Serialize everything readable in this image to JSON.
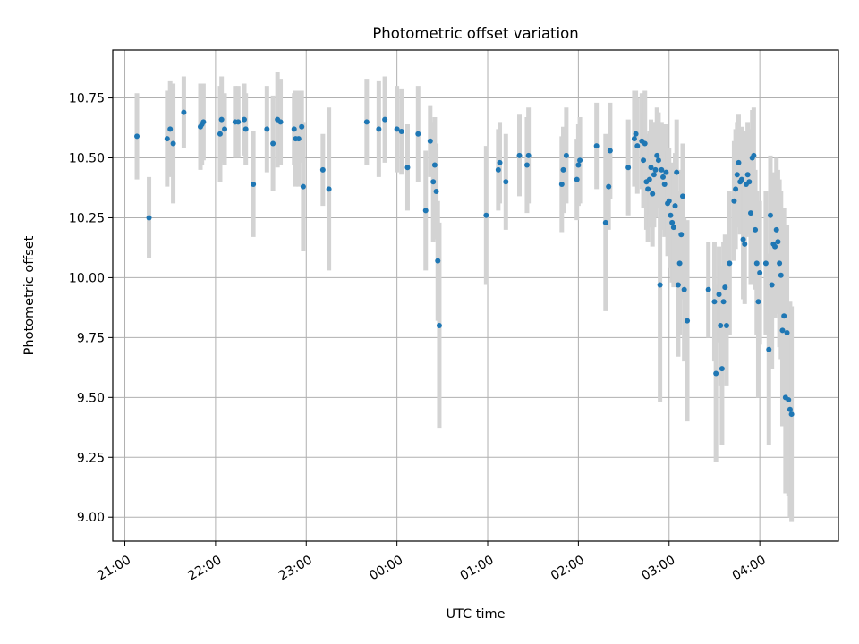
{
  "chart_data": {
    "type": "scatter",
    "title": "Photometric offset variation",
    "xlabel": "UTC time",
    "ylabel": "Photometric offset",
    "x_unit": "UTC time (HH:MM, night spanning 21:00 to ~04:37)",
    "xlim": [
      "20:52",
      "04:52"
    ],
    "ylim": [
      8.9,
      10.95
    ],
    "x_ticks": [
      "21:00",
      "22:00",
      "23:00",
      "00:00",
      "01:00",
      "02:00",
      "03:00",
      "04:00"
    ],
    "y_ticks": [
      "9.00",
      "9.25",
      "9.50",
      "9.75",
      "10.00",
      "10.25",
      "10.50",
      "10.75"
    ],
    "grid": true,
    "colors": {
      "marker": "#1f77b4",
      "errorbar": "#d3d3d3",
      "grid": "#b0b0b0"
    },
    "points": [
      {
        "t": "21:08",
        "y": 10.59,
        "e": 0.18
      },
      {
        "t": "21:16",
        "y": 10.25,
        "e": 0.17
      },
      {
        "t": "21:28",
        "y": 10.58,
        "e": 0.2
      },
      {
        "t": "21:30",
        "y": 10.62,
        "e": 0.2
      },
      {
        "t": "21:32",
        "y": 10.56,
        "e": 0.25
      },
      {
        "t": "21:39",
        "y": 10.69,
        "e": 0.15
      },
      {
        "t": "21:50",
        "y": 10.63,
        "e": 0.18
      },
      {
        "t": "21:51",
        "y": 10.64,
        "e": 0.17
      },
      {
        "t": "21:52",
        "y": 10.65,
        "e": 0.16
      },
      {
        "t": "22:03",
        "y": 10.6,
        "e": 0.2
      },
      {
        "t": "22:04",
        "y": 10.66,
        "e": 0.18
      },
      {
        "t": "22:06",
        "y": 10.62,
        "e": 0.15
      },
      {
        "t": "22:13",
        "y": 10.65,
        "e": 0.15
      },
      {
        "t": "22:15",
        "y": 10.65,
        "e": 0.15
      },
      {
        "t": "22:19",
        "y": 10.66,
        "e": 0.15
      },
      {
        "t": "22:20",
        "y": 10.62,
        "e": 0.15
      },
      {
        "t": "22:25",
        "y": 10.39,
        "e": 0.22
      },
      {
        "t": "22:34",
        "y": 10.62,
        "e": 0.18
      },
      {
        "t": "22:38",
        "y": 10.56,
        "e": 0.2
      },
      {
        "t": "22:41",
        "y": 10.66,
        "e": 0.2
      },
      {
        "t": "22:43",
        "y": 10.65,
        "e": 0.18
      },
      {
        "t": "22:52",
        "y": 10.62,
        "e": 0.15
      },
      {
        "t": "22:53",
        "y": 10.58,
        "e": 0.2
      },
      {
        "t": "22:55",
        "y": 10.58,
        "e": 0.2
      },
      {
        "t": "22:57",
        "y": 10.63,
        "e": 0.15
      },
      {
        "t": "22:58",
        "y": 10.38,
        "e": 0.27
      },
      {
        "t": "23:11",
        "y": 10.45,
        "e": 0.15
      },
      {
        "t": "23:15",
        "y": 10.37,
        "e": 0.34
      },
      {
        "t": "23:40",
        "y": 10.65,
        "e": 0.18
      },
      {
        "t": "23:48",
        "y": 10.62,
        "e": 0.2
      },
      {
        "t": "23:52",
        "y": 10.66,
        "e": 0.18
      },
      {
        "t": "00:00",
        "y": 10.62,
        "e": 0.18
      },
      {
        "t": "00:03",
        "y": 10.61,
        "e": 0.18
      },
      {
        "t": "00:07",
        "y": 10.46,
        "e": 0.18
      },
      {
        "t": "00:14",
        "y": 10.6,
        "e": 0.2
      },
      {
        "t": "00:19",
        "y": 10.28,
        "e": 0.25
      },
      {
        "t": "00:22",
        "y": 10.57,
        "e": 0.15
      },
      {
        "t": "00:24",
        "y": 10.4,
        "e": 0.25
      },
      {
        "t": "00:25",
        "y": 10.47,
        "e": 0.2
      },
      {
        "t": "00:26",
        "y": 10.36,
        "e": 0.2
      },
      {
        "t": "00:27",
        "y": 10.07,
        "e": 0.25
      },
      {
        "t": "00:28",
        "y": 9.8,
        "e": 0.43
      },
      {
        "t": "00:59",
        "y": 10.26,
        "e": 0.29
      },
      {
        "t": "01:07",
        "y": 10.45,
        "e": 0.17
      },
      {
        "t": "01:08",
        "y": 10.48,
        "e": 0.17
      },
      {
        "t": "01:12",
        "y": 10.4,
        "e": 0.2
      },
      {
        "t": "01:21",
        "y": 10.51,
        "e": 0.17
      },
      {
        "t": "01:26",
        "y": 10.47,
        "e": 0.2
      },
      {
        "t": "01:27",
        "y": 10.51,
        "e": 0.2
      },
      {
        "t": "01:49",
        "y": 10.39,
        "e": 0.2
      },
      {
        "t": "01:50",
        "y": 10.45,
        "e": 0.18
      },
      {
        "t": "01:52",
        "y": 10.51,
        "e": 0.2
      },
      {
        "t": "01:59",
        "y": 10.41,
        "e": 0.17
      },
      {
        "t": "02:00",
        "y": 10.47,
        "e": 0.17
      },
      {
        "t": "02:01",
        "y": 10.49,
        "e": 0.18
      },
      {
        "t": "02:12",
        "y": 10.55,
        "e": 0.18
      },
      {
        "t": "02:18",
        "y": 10.23,
        "e": 0.37
      },
      {
        "t": "02:20",
        "y": 10.38,
        "e": 0.18
      },
      {
        "t": "02:21",
        "y": 10.53,
        "e": 0.2
      },
      {
        "t": "02:33",
        "y": 10.46,
        "e": 0.2
      },
      {
        "t": "02:37",
        "y": 10.58,
        "e": 0.2
      },
      {
        "t": "02:38",
        "y": 10.6,
        "e": 0.18
      },
      {
        "t": "02:39",
        "y": 10.55,
        "e": 0.2
      },
      {
        "t": "02:42",
        "y": 10.57,
        "e": 0.2
      },
      {
        "t": "02:43",
        "y": 10.49,
        "e": 0.2
      },
      {
        "t": "02:44",
        "y": 10.56,
        "e": 0.22
      },
      {
        "t": "02:45",
        "y": 10.4,
        "e": 0.2
      },
      {
        "t": "02:46",
        "y": 10.37,
        "e": 0.22
      },
      {
        "t": "02:47",
        "y": 10.41,
        "e": 0.2
      },
      {
        "t": "02:48",
        "y": 10.46,
        "e": 0.2
      },
      {
        "t": "02:49",
        "y": 10.35,
        "e": 0.22
      },
      {
        "t": "02:50",
        "y": 10.43,
        "e": 0.22
      },
      {
        "t": "02:51",
        "y": 10.45,
        "e": 0.2
      },
      {
        "t": "02:52",
        "y": 10.51,
        "e": 0.2
      },
      {
        "t": "02:53",
        "y": 10.49,
        "e": 0.2
      },
      {
        "t": "02:54",
        "y": 9.97,
        "e": 0.49
      },
      {
        "t": "02:55",
        "y": 10.45,
        "e": 0.2
      },
      {
        "t": "02:56",
        "y": 10.42,
        "e": 0.22
      },
      {
        "t": "02:57",
        "y": 10.39,
        "e": 0.22
      },
      {
        "t": "02:58",
        "y": 10.44,
        "e": 0.2
      },
      {
        "t": "02:59",
        "y": 10.31,
        "e": 0.22
      },
      {
        "t": "03:00",
        "y": 10.32,
        "e": 0.22
      },
      {
        "t": "03:01",
        "y": 10.26,
        "e": 0.22
      },
      {
        "t": "03:02",
        "y": 10.23,
        "e": 0.25
      },
      {
        "t": "03:03",
        "y": 10.21,
        "e": 0.25
      },
      {
        "t": "03:04",
        "y": 10.3,
        "e": 0.22
      },
      {
        "t": "03:05",
        "y": 10.44,
        "e": 0.22
      },
      {
        "t": "03:06",
        "y": 9.97,
        "e": 0.3
      },
      {
        "t": "03:07",
        "y": 10.06,
        "e": 0.3
      },
      {
        "t": "03:08",
        "y": 10.18,
        "e": 0.27
      },
      {
        "t": "03:09",
        "y": 10.34,
        "e": 0.22
      },
      {
        "t": "03:10",
        "y": 9.95,
        "e": 0.3
      },
      {
        "t": "03:12",
        "y": 9.82,
        "e": 0.42
      },
      {
        "t": "03:26",
        "y": 9.95,
        "e": 0.2
      },
      {
        "t": "03:30",
        "y": 9.9,
        "e": 0.25
      },
      {
        "t": "03:31",
        "y": 9.6,
        "e": 0.37
      },
      {
        "t": "03:33",
        "y": 9.93,
        "e": 0.2
      },
      {
        "t": "03:34",
        "y": 9.8,
        "e": 0.25
      },
      {
        "t": "03:35",
        "y": 9.62,
        "e": 0.32
      },
      {
        "t": "03:36",
        "y": 9.9,
        "e": 0.25
      },
      {
        "t": "03:37",
        "y": 9.96,
        "e": 0.22
      },
      {
        "t": "03:38",
        "y": 9.8,
        "e": 0.25
      },
      {
        "t": "03:40",
        "y": 10.06,
        "e": 0.3
      },
      {
        "t": "03:43",
        "y": 10.32,
        "e": 0.25
      },
      {
        "t": "03:44",
        "y": 10.37,
        "e": 0.25
      },
      {
        "t": "03:45",
        "y": 10.43,
        "e": 0.22
      },
      {
        "t": "03:46",
        "y": 10.48,
        "e": 0.2
      },
      {
        "t": "03:47",
        "y": 10.4,
        "e": 0.22
      },
      {
        "t": "03:48",
        "y": 10.41,
        "e": 0.22
      },
      {
        "t": "03:49",
        "y": 10.16,
        "e": 0.25
      },
      {
        "t": "03:50",
        "y": 10.14,
        "e": 0.25
      },
      {
        "t": "03:51",
        "y": 10.39,
        "e": 0.22
      },
      {
        "t": "03:52",
        "y": 10.43,
        "e": 0.22
      },
      {
        "t": "03:53",
        "y": 10.4,
        "e": 0.22
      },
      {
        "t": "03:54",
        "y": 10.27,
        "e": 0.3
      },
      {
        "t": "03:55",
        "y": 10.5,
        "e": 0.2
      },
      {
        "t": "03:56",
        "y": 10.51,
        "e": 0.2
      },
      {
        "t": "03:57",
        "y": 10.2,
        "e": 0.25
      },
      {
        "t": "03:58",
        "y": 10.06,
        "e": 0.3
      },
      {
        "t": "03:59",
        "y": 9.9,
        "e": 0.4
      },
      {
        "t": "04:00",
        "y": 10.02,
        "e": 0.3
      },
      {
        "t": "04:04",
        "y": 10.06,
        "e": 0.3
      },
      {
        "t": "04:06",
        "y": 9.7,
        "e": 0.4
      },
      {
        "t": "04:07",
        "y": 10.26,
        "e": 0.25
      },
      {
        "t": "04:08",
        "y": 9.97,
        "e": 0.35
      },
      {
        "t": "04:09",
        "y": 10.14,
        "e": 0.3
      },
      {
        "t": "04:10",
        "y": 10.13,
        "e": 0.3
      },
      {
        "t": "04:11",
        "y": 10.2,
        "e": 0.3
      },
      {
        "t": "04:12",
        "y": 10.15,
        "e": 0.3
      },
      {
        "t": "04:13",
        "y": 10.06,
        "e": 0.35
      },
      {
        "t": "04:14",
        "y": 10.01,
        "e": 0.35
      },
      {
        "t": "04:15",
        "y": 9.78,
        "e": 0.4
      },
      {
        "t": "04:16",
        "y": 9.84,
        "e": 0.45
      },
      {
        "t": "04:17",
        "y": 9.5,
        "e": 0.4
      },
      {
        "t": "04:18",
        "y": 9.77,
        "e": 0.45
      },
      {
        "t": "04:19",
        "y": 9.49,
        "e": 0.4
      },
      {
        "t": "04:20",
        "y": 9.45,
        "e": 0.45
      },
      {
        "t": "04:21",
        "y": 9.43,
        "e": 0.45
      }
    ]
  }
}
